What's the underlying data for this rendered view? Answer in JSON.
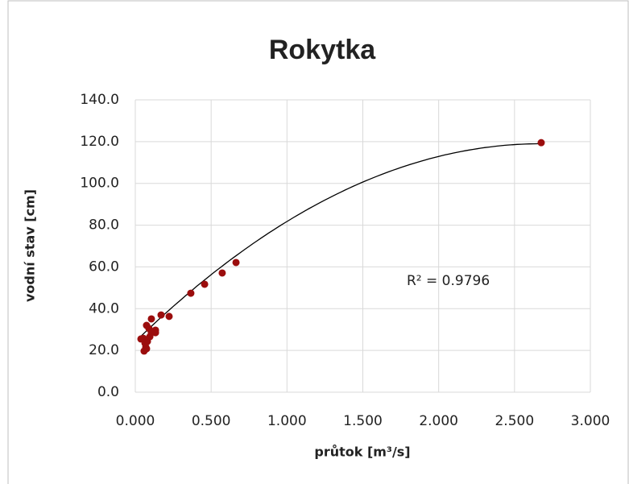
{
  "chart_data": {
    "type": "scatter",
    "title": "Rokytka",
    "xlabel": "průtok [m³/s]",
    "ylabel": "vodní stav [cm]",
    "series": [
      {
        "color": "#9b0d0d",
        "x": [
          2.676,
          0.664,
          0.573,
          0.457,
          0.366,
          0.223,
          0.17,
          0.106,
          0.133,
          0.133,
          0.09,
          0.074,
          0.106,
          0.053,
          0.037,
          0.08,
          0.069,
          0.058,
          0.074,
          0.096,
          0.064
        ],
        "values": [
          119.5,
          62.1,
          57.1,
          51.7,
          47.4,
          36.3,
          37.0,
          35.1,
          29.7,
          28.5,
          30.5,
          32.0,
          28.5,
          25.8,
          25.5,
          24.3,
          21.6,
          19.7,
          20.8,
          26.6,
          23.5
        ]
      }
    ],
    "trendline": {
      "type": "polynomial",
      "coefficients": [
        24.2,
        70.75,
        -13.2
      ],
      "color": "#000000",
      "label": "R² = 0.9796"
    },
    "xlim": [
      0,
      3
    ],
    "ylim": [
      0,
      140
    ],
    "xticks": [
      {
        "value": 0,
        "label": "0.000"
      },
      {
        "value": 0.5,
        "label": "0.500"
      },
      {
        "value": 1,
        "label": "1.000"
      },
      {
        "value": 1.5,
        "label": "1.500"
      },
      {
        "value": 2,
        "label": "2.000"
      },
      {
        "value": 2.5,
        "label": "2.500"
      },
      {
        "value": 3,
        "label": "3.000"
      }
    ],
    "yticks": [
      {
        "value": 0,
        "label": "0.0"
      },
      {
        "value": 20,
        "label": "20.0"
      },
      {
        "value": 40,
        "label": "40.0"
      },
      {
        "value": 60,
        "label": "60.0"
      },
      {
        "value": 80,
        "label": "80.0"
      },
      {
        "value": 100,
        "label": "100.0"
      },
      {
        "value": 120,
        "label": "120.0"
      },
      {
        "value": 140,
        "label": "140.0"
      }
    ],
    "grid": true
  }
}
